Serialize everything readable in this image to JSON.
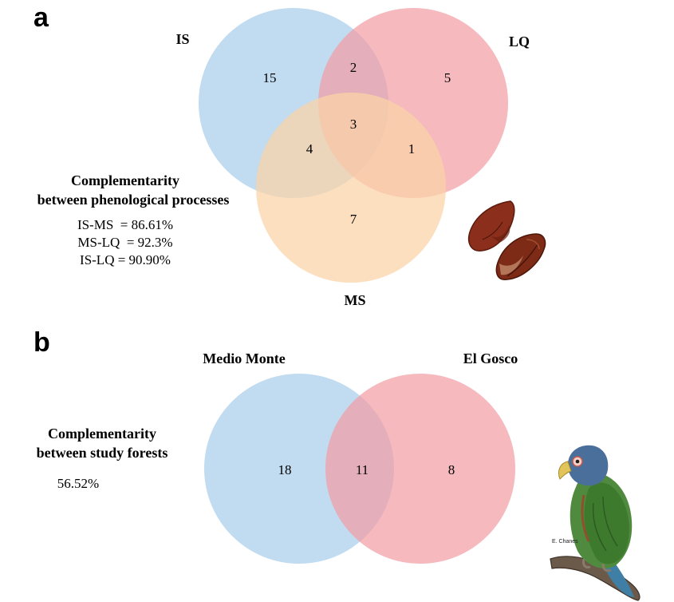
{
  "panel_a": {
    "letter": "a",
    "sets": {
      "is": "IS",
      "lq": "LQ",
      "ms": "MS"
    },
    "counts": {
      "is_only": "15",
      "lq_only": "5",
      "ms_only": "7",
      "is_lq": "2",
      "is_ms": "4",
      "lq_ms": "1",
      "all": "3"
    },
    "note": {
      "title_line1": "Complementarity",
      "title_line2": "between phenological processes",
      "values": [
        "IS-MS  = 86.61%",
        "MS-LQ  = 92.3%",
        "IS-LQ = 90.90%"
      ]
    },
    "colors": {
      "is": "#a9cdea",
      "lq": "#f19ea5",
      "ms": "#fbd3a6"
    }
  },
  "panel_b": {
    "letter": "b",
    "sets": {
      "left": "Medio Monte",
      "right": "El Gosco"
    },
    "counts": {
      "left_only": "18",
      "both": "11",
      "right_only": "8"
    },
    "note": {
      "title_line1": "Complementarity",
      "title_line2": "between study forests",
      "value": "56.52%"
    },
    "colors": {
      "left": "#a9cdea",
      "right": "#f19ea5"
    }
  },
  "illustrations": {
    "seeds_icon": "seeds-icon",
    "parrot_icon": "parrot-icon",
    "artist_credit": "E. Chanes"
  }
}
